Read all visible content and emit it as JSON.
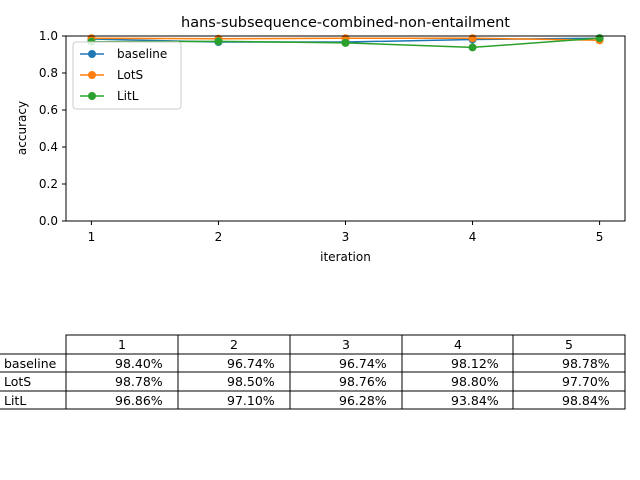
{
  "chart_data": {
    "type": "line",
    "title": "hans-subsequence-combined-non-entailment",
    "xlabel": "iteration",
    "ylabel": "accuracy",
    "x": [
      1,
      2,
      3,
      4,
      5
    ],
    "xlim": [
      0.8,
      5.2
    ],
    "ylim": [
      0.0,
      1.0
    ],
    "yticks": [
      0.0,
      0.2,
      0.4,
      0.6,
      0.8,
      1.0
    ],
    "ytick_labels": [
      "0.0",
      "0.2",
      "0.4",
      "0.6",
      "0.8",
      "1.0"
    ],
    "xtick_labels": [
      "1",
      "2",
      "3",
      "4",
      "5"
    ],
    "grid": false,
    "legend_position": "upper-left",
    "series": [
      {
        "name": "baseline",
        "color": "#1f77b4",
        "values": [
          0.984,
          0.9674,
          0.9674,
          0.9812,
          0.9878
        ]
      },
      {
        "name": "LotS",
        "color": "#ff7f0e",
        "values": [
          0.9878,
          0.985,
          0.9876,
          0.988,
          0.977
        ]
      },
      {
        "name": "LitL",
        "color": "#2ca02c",
        "values": [
          0.9686,
          0.971,
          0.9628,
          0.9384,
          0.9884
        ]
      }
    ],
    "table": {
      "col_labels": [
        "1",
        "2",
        "3",
        "4",
        "5"
      ],
      "rows": [
        {
          "label": "baseline",
          "cells": [
            "98.40%",
            "96.74%",
            "96.74%",
            "98.12%",
            "98.78%"
          ]
        },
        {
          "label": "LotS",
          "cells": [
            "98.78%",
            "98.50%",
            "98.76%",
            "98.80%",
            "97.70%"
          ]
        },
        {
          "label": "LitL",
          "cells": [
            "96.86%",
            "97.10%",
            "96.28%",
            "93.84%",
            "98.84%"
          ]
        }
      ]
    }
  }
}
